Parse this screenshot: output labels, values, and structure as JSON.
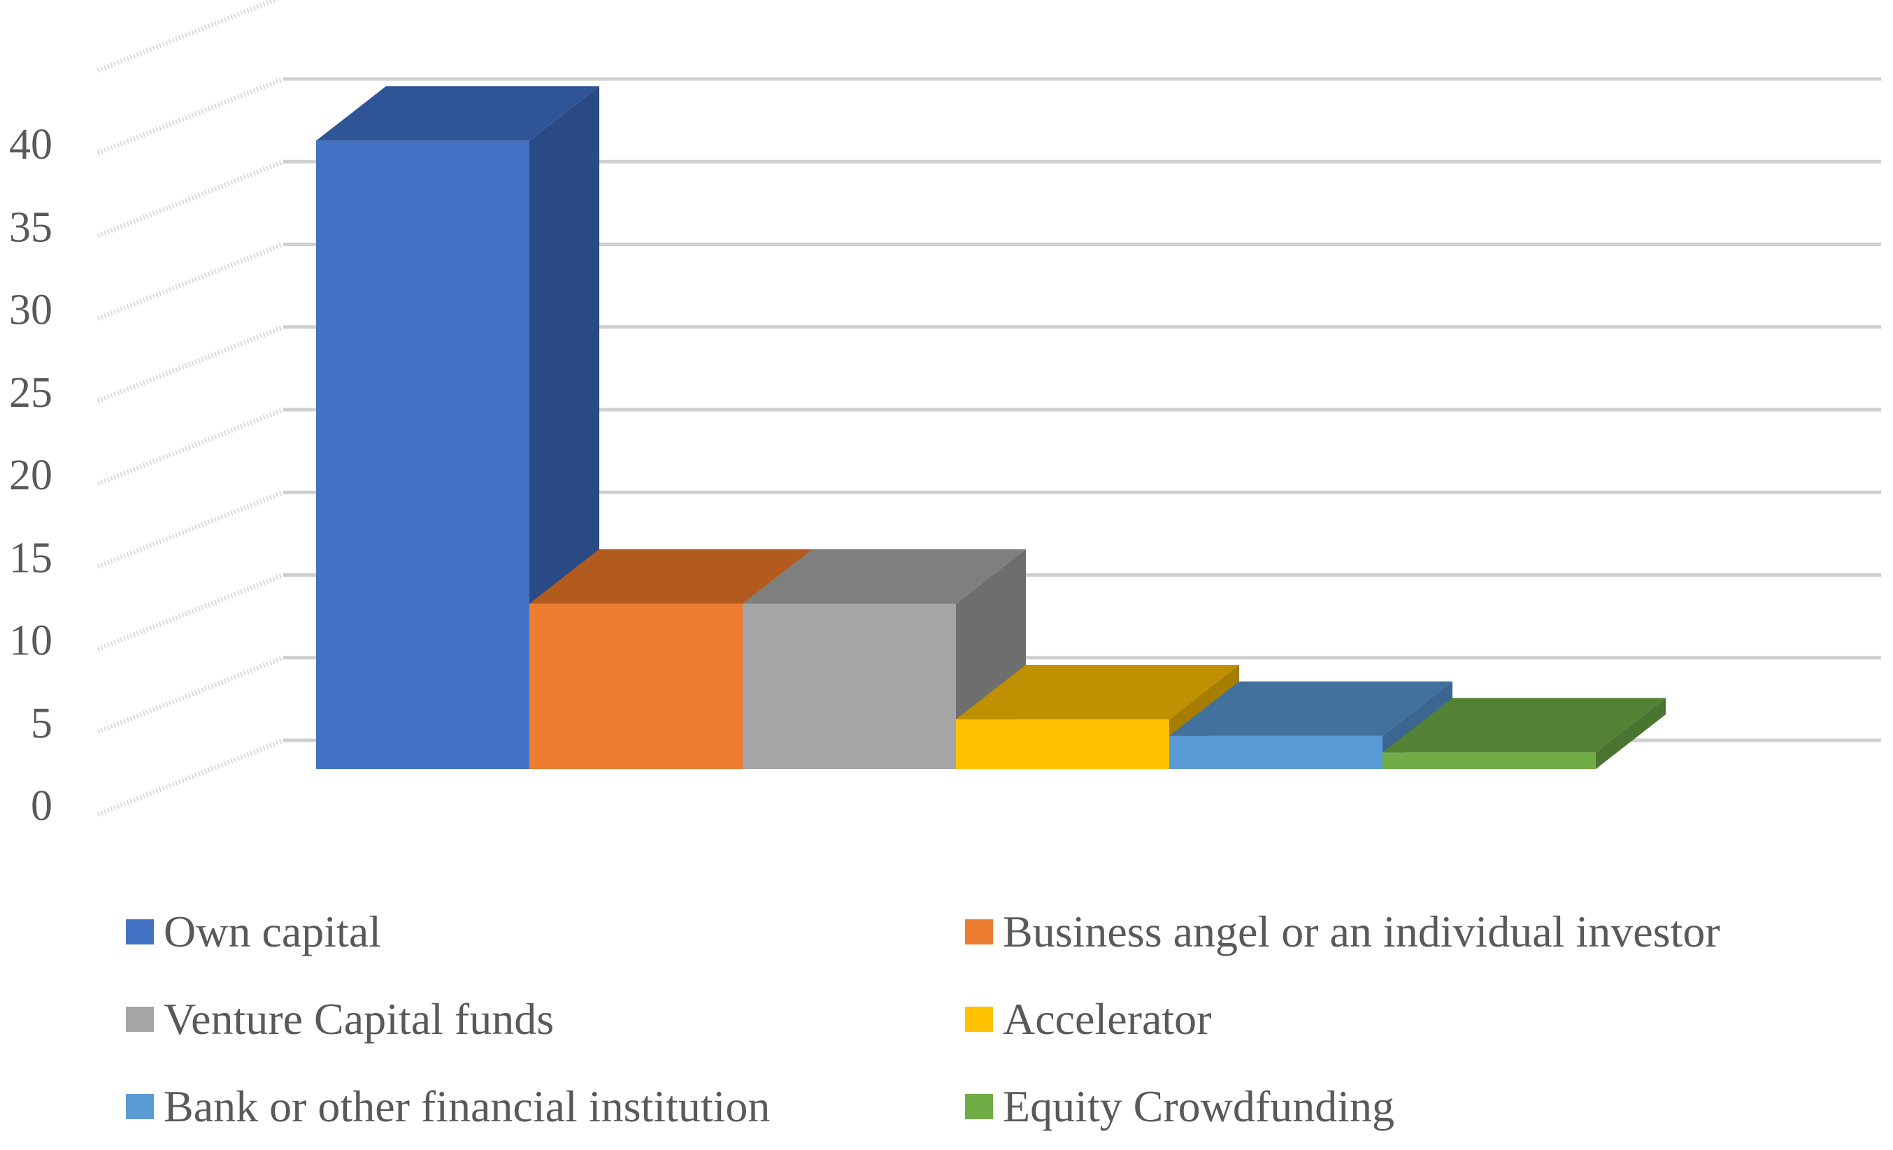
{
  "chart_data": {
    "type": "bar",
    "title": "",
    "xlabel": "",
    "ylabel": "",
    "ylim": [
      0,
      45
    ],
    "y_ticks": [
      "0",
      "5",
      "10",
      "15",
      "20",
      "25",
      "30",
      "35",
      "40"
    ],
    "grid": true,
    "three_d": true,
    "legend_position": "bottom",
    "categories": [
      "Own capital",
      "Business angel or an individual investor",
      "Venture Capital funds",
      "Accelerator",
      "Bank or other financial institution",
      "Equity Crowdfunding"
    ],
    "values": [
      38,
      10,
      10,
      3,
      2,
      1
    ],
    "colors": [
      "#4472C4",
      "#ED7D31",
      "#A5A5A5",
      "#FFC000",
      "#5B9BD5",
      "#70AD47"
    ],
    "top_colors": [
      "#2F5597",
      "#B35A1E",
      "#7F7F7F",
      "#BF9000",
      "#41719C",
      "#548235"
    ],
    "side_colors": [
      "#2A4A85",
      "#9C4E1A",
      "#6E6E6E",
      "#A67D00",
      "#3A6690",
      "#4A7530"
    ]
  }
}
